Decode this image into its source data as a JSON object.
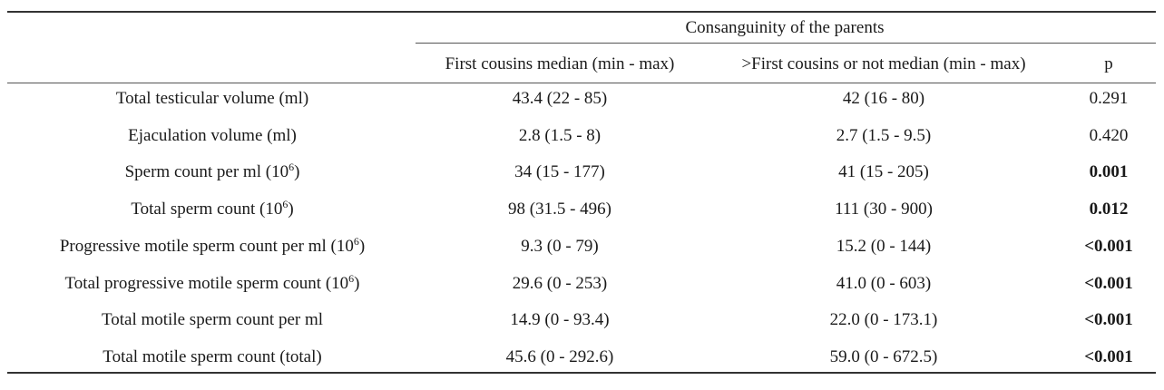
{
  "table": {
    "group_header": "Consanguinity of the parents",
    "columns": [
      "",
      "First cousins median (min - max)",
      ">First cousins or not median (min - max)",
      "p"
    ],
    "rows": [
      {
        "label": "Total testicular volume (ml)",
        "label_sup": "",
        "label_suffix": "",
        "first_cousins": "43.4 (22 - 85)",
        "not_first_cousins": "42 (16 - 80)",
        "p": "0.291",
        "p_bold": false
      },
      {
        "label": "Ejaculation volume (ml)",
        "label_sup": "",
        "label_suffix": "",
        "first_cousins": "2.8 (1.5 - 8)",
        "not_first_cousins": "2.7 (1.5 - 9.5)",
        "p": "0.420",
        "p_bold": false
      },
      {
        "label": "Sperm count per ml (10",
        "label_sup": "6",
        "label_suffix": ")",
        "first_cousins": "34 (15 - 177)",
        "not_first_cousins": "41 (15 - 205)",
        "p": "0.001",
        "p_bold": true
      },
      {
        "label": "Total sperm count (10",
        "label_sup": "6",
        "label_suffix": ")",
        "first_cousins": "98 (31.5 - 496)",
        "not_first_cousins": "111 (30 - 900)",
        "p": "0.012",
        "p_bold": true
      },
      {
        "label": "Progressive motile sperm count per ml (10",
        "label_sup": "6",
        "label_suffix": ")",
        "first_cousins": "9.3 (0 - 79)",
        "not_first_cousins": "15.2 (0 - 144)",
        "p": "<0.001",
        "p_bold": true
      },
      {
        "label": "Total progressive motile sperm count (10",
        "label_sup": "6",
        "label_suffix": ")",
        "first_cousins": "29.6 (0 - 253)",
        "not_first_cousins": "41.0 (0 - 603)",
        "p": "<0.001",
        "p_bold": true
      },
      {
        "label": "Total motile sperm count per ml",
        "label_sup": "",
        "label_suffix": "",
        "first_cousins": "14.9 (0 - 93.4)",
        "not_first_cousins": "22.0 (0 - 173.1)",
        "p": "<0.001",
        "p_bold": true
      },
      {
        "label": "Total motile sperm count (total)",
        "label_sup": "",
        "label_suffix": "",
        "first_cousins": "45.6 (0 - 292.6)",
        "not_first_cousins": "59.0 (0 - 672.5)",
        "p": "<0.001",
        "p_bold": true
      }
    ]
  }
}
